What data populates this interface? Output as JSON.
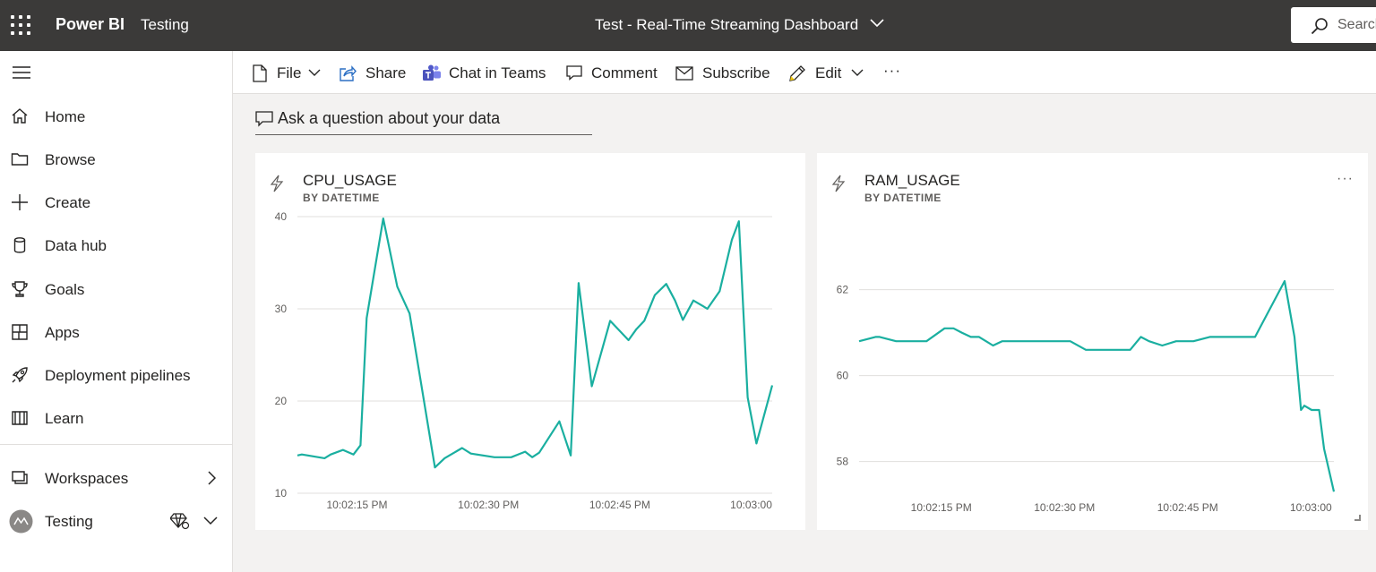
{
  "topbar": {
    "brand": "Power BI",
    "workspace": "Testing",
    "dashboard_title": "Test - Real-Time Streaming Dashboard",
    "search_placeholder": "Search"
  },
  "nav": {
    "items": [
      {
        "label": "Home",
        "icon": "home-icon"
      },
      {
        "label": "Browse",
        "icon": "folder-icon"
      },
      {
        "label": "Create",
        "icon": "plus-icon"
      },
      {
        "label": "Data hub",
        "icon": "database-icon"
      },
      {
        "label": "Goals",
        "icon": "trophy-icon"
      },
      {
        "label": "Apps",
        "icon": "apps-icon"
      },
      {
        "label": "Deployment pipelines",
        "icon": "rocket-icon"
      },
      {
        "label": "Learn",
        "icon": "book-icon"
      }
    ],
    "workspaces_label": "Workspaces",
    "current_workspace": "Testing"
  },
  "commands": {
    "file": "File",
    "share": "Share",
    "chat": "Chat in Teams",
    "comment": "Comment",
    "subscribe": "Subscribe",
    "edit": "Edit",
    "more": "···"
  },
  "qa": {
    "placeholder": "Ask a question about your data"
  },
  "colors": {
    "line": "#1aafa0",
    "topbar": "#3b3a39",
    "gridline": "#e1dfdd"
  },
  "tiles": {
    "cpu": {
      "title": "CPU_USAGE",
      "subtitle": "BY DATETIME"
    },
    "ram": {
      "title": "RAM_USAGE",
      "subtitle": "BY DATETIME",
      "more": "···"
    }
  },
  "chart_data": [
    {
      "type": "line",
      "title": "CPU_USAGE",
      "subtitle": "BY DATETIME",
      "x_tick_labels": [
        "10:02:15 PM",
        "10:02:30 PM",
        "10:02:45 PM",
        "10:03:00"
      ],
      "x_tick_seconds": [
        15,
        30,
        45,
        60
      ],
      "y_ticks": [
        10,
        20,
        30,
        40
      ],
      "xlim": [
        8.2,
        62.4
      ],
      "ylim": [
        10,
        40
      ],
      "grid": true,
      "series": [
        {
          "x": [
            8.2,
            8.7,
            11.3,
            12.0,
            13.4,
            14.6,
            15.4,
            16.1,
            18.0,
            19.6,
            21.0,
            23.9,
            25.0,
            27.0,
            28.0,
            30.7,
            31.6,
            32.6,
            34.2,
            35.0,
            35.8,
            38.1,
            39.4,
            40.3,
            41.8,
            43.9,
            46.0,
            46.9,
            47.8,
            49.0,
            50.3,
            51.3,
            52.2,
            53.4,
            54.5,
            55.0,
            56.4,
            57.8,
            58.6,
            59.6,
            60.6,
            62.4
          ],
          "y": [
            14.1,
            14.2,
            13.8,
            14.2,
            14.7,
            14.2,
            15.2,
            29.0,
            39.8,
            32.4,
            29.5,
            12.8,
            13.8,
            14.9,
            14.3,
            13.9,
            13.9,
            13.9,
            14.5,
            13.9,
            14.4,
            17.8,
            14.1,
            32.8,
            21.6,
            28.7,
            26.6,
            27.8,
            28.7,
            31.5,
            32.7,
            30.9,
            28.8,
            30.9,
            30.3,
            30.0,
            31.9,
            37.5,
            39.5,
            20.4,
            15.4,
            21.7
          ]
        }
      ]
    },
    {
      "type": "line",
      "title": "RAM_USAGE",
      "subtitle": "BY DATETIME",
      "x_tick_labels": [
        "10:02:15 PM",
        "10:02:30 PM",
        "10:02:45 PM",
        "10:03:00"
      ],
      "x_tick_seconds": [
        15,
        30,
        45,
        60
      ],
      "y_ticks": [
        58,
        60,
        62
      ],
      "xlim": [
        5,
        62.8
      ],
      "ylim": [
        57.2,
        63.2
      ],
      "grid": true,
      "series": [
        {
          "x": [
            5,
            7,
            7.5,
            9.5,
            10.8,
            13.2,
            15.4,
            16.5,
            17.5,
            18.6,
            19.6,
            21.3,
            22.4,
            24.0,
            25.0,
            26.3,
            28.0,
            29.6,
            30.7,
            32.6,
            33.7,
            35.4,
            36.4,
            38.0,
            39.3,
            40.3,
            41.9,
            43.6,
            44.9,
            45.7,
            47.7,
            49.2,
            49.8,
            50.4,
            52.0,
            53.2,
            56.8,
            58.0,
            58.8,
            59.2,
            60.1,
            61.0,
            61.6,
            62.8
          ],
          "y": [
            60.8,
            60.9,
            60.9,
            60.8,
            60.8,
            60.8,
            61.1,
            61.1,
            61.0,
            60.9,
            60.9,
            60.7,
            60.8,
            60.8,
            60.8,
            60.8,
            60.8,
            60.8,
            60.8,
            60.6,
            60.6,
            60.6,
            60.6,
            60.6,
            60.9,
            60.8,
            60.7,
            60.8,
            60.8,
            60.8,
            60.9,
            60.9,
            60.9,
            60.9,
            60.9,
            60.9,
            62.2,
            60.9,
            59.2,
            59.3,
            59.2,
            59.2,
            58.3,
            57.3
          ]
        }
      ]
    }
  ]
}
